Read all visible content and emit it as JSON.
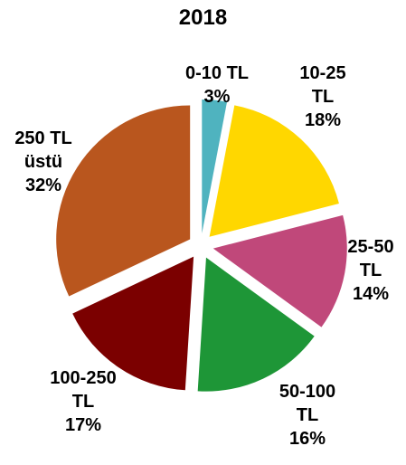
{
  "chart_data": {
    "type": "pie",
    "title": "2018",
    "categories": [
      "0-10 TL",
      "10-25 TL",
      "25-50 TL",
      "50-100 TL",
      "100-250 TL",
      "250 TL üstü"
    ],
    "values": [
      3,
      18,
      14,
      16,
      17,
      32
    ],
    "value_labels": [
      "3%",
      "18%",
      "14%",
      "16%",
      "17%",
      "32%"
    ],
    "colors": [
      "#4fb3bf",
      "#ffd700",
      "#c0487a",
      "#1e9637",
      "#7b0000",
      "#b9561e"
    ]
  }
}
